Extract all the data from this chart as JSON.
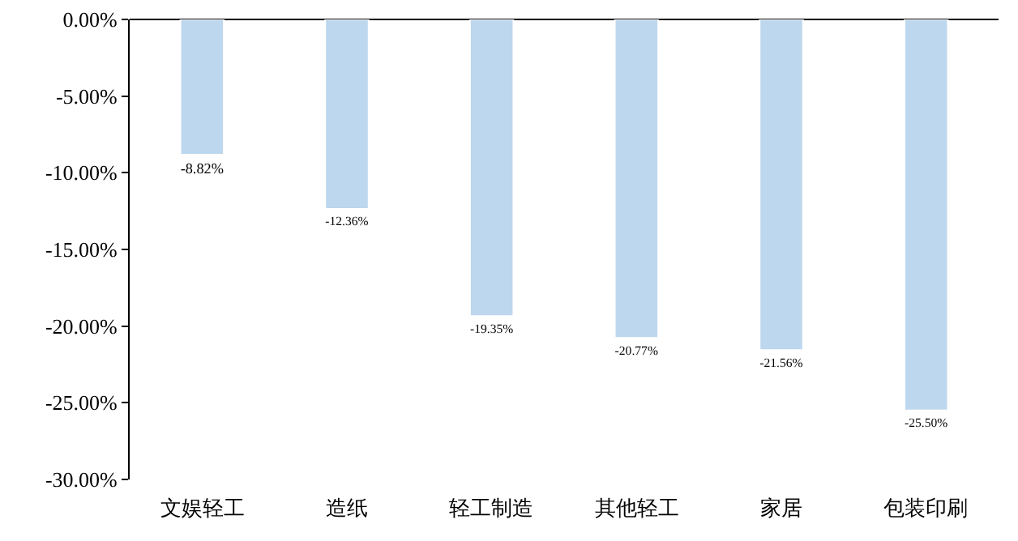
{
  "chart_data": {
    "type": "bar",
    "categories": [
      "文娱轻工",
      "造纸",
      "轻工制造",
      "其他轻工",
      "家居",
      "包装印刷"
    ],
    "values": [
      -8.82,
      -12.36,
      -19.35,
      -20.77,
      -21.56,
      -25.5
    ],
    "value_labels": [
      "-8.82%",
      "-12.36%",
      "-19.35%",
      "-20.77%",
      "-21.56%",
      "-25.50%"
    ],
    "color": "#bdd7ee",
    "ylim": [
      -30,
      0
    ],
    "yticks": [
      {
        "value": 0,
        "label": "0.00%"
      },
      {
        "value": -5,
        "label": "-5.00%"
      },
      {
        "value": -10,
        "label": "-10.00%"
      },
      {
        "value": -15,
        "label": "-15.00%"
      },
      {
        "value": -20,
        "label": "-20.00%"
      },
      {
        "value": -25,
        "label": "-25.00%"
      },
      {
        "value": -30,
        "label": "-30.00%"
      }
    ],
    "grid": false,
    "legend": false
  }
}
